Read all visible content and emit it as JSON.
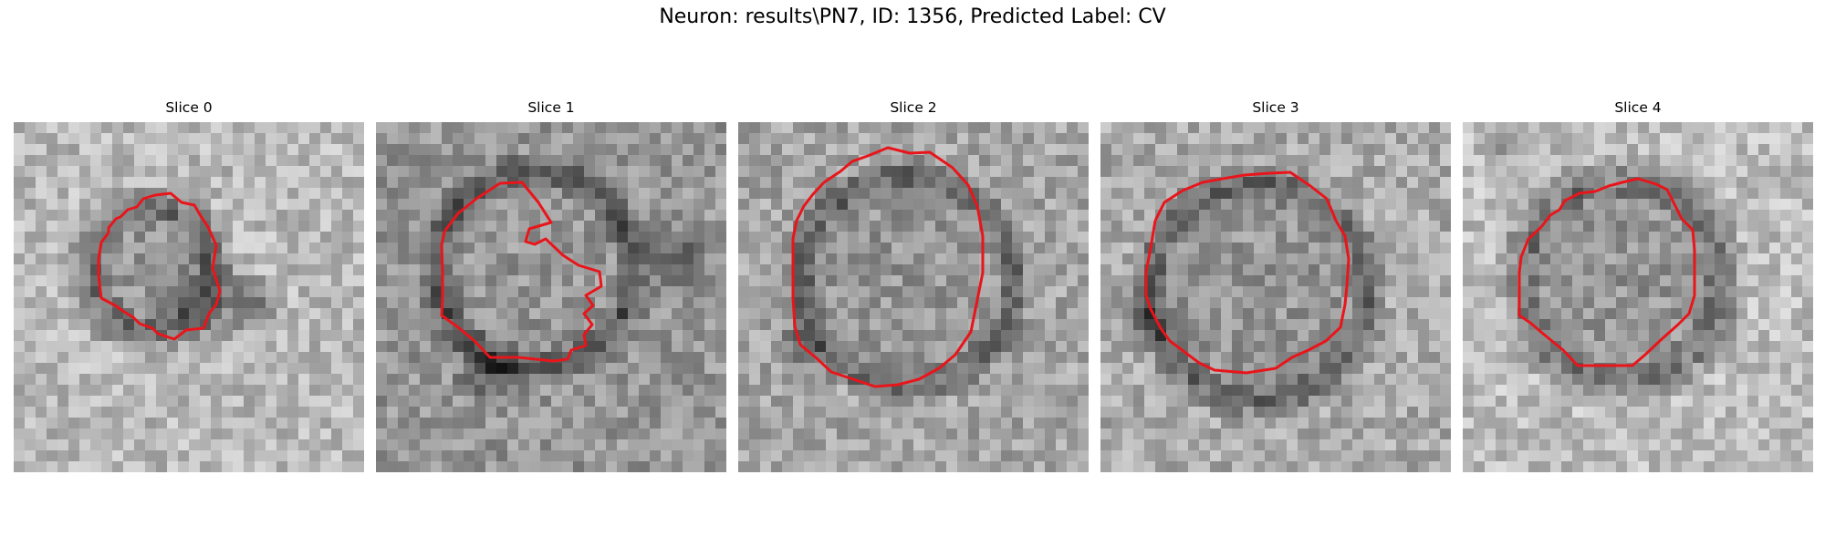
{
  "figure": {
    "title": "Neuron: results\\PN7, ID: 1356, Predicted Label: CV"
  },
  "contour_color": "#e8151b",
  "colormap": "gray",
  "panels": [
    {
      "title": "Slice 0"
    },
    {
      "title": "Slice 1"
    },
    {
      "title": "Slice 2"
    },
    {
      "title": "Slice 3"
    },
    {
      "title": "Slice 4"
    }
  ]
}
